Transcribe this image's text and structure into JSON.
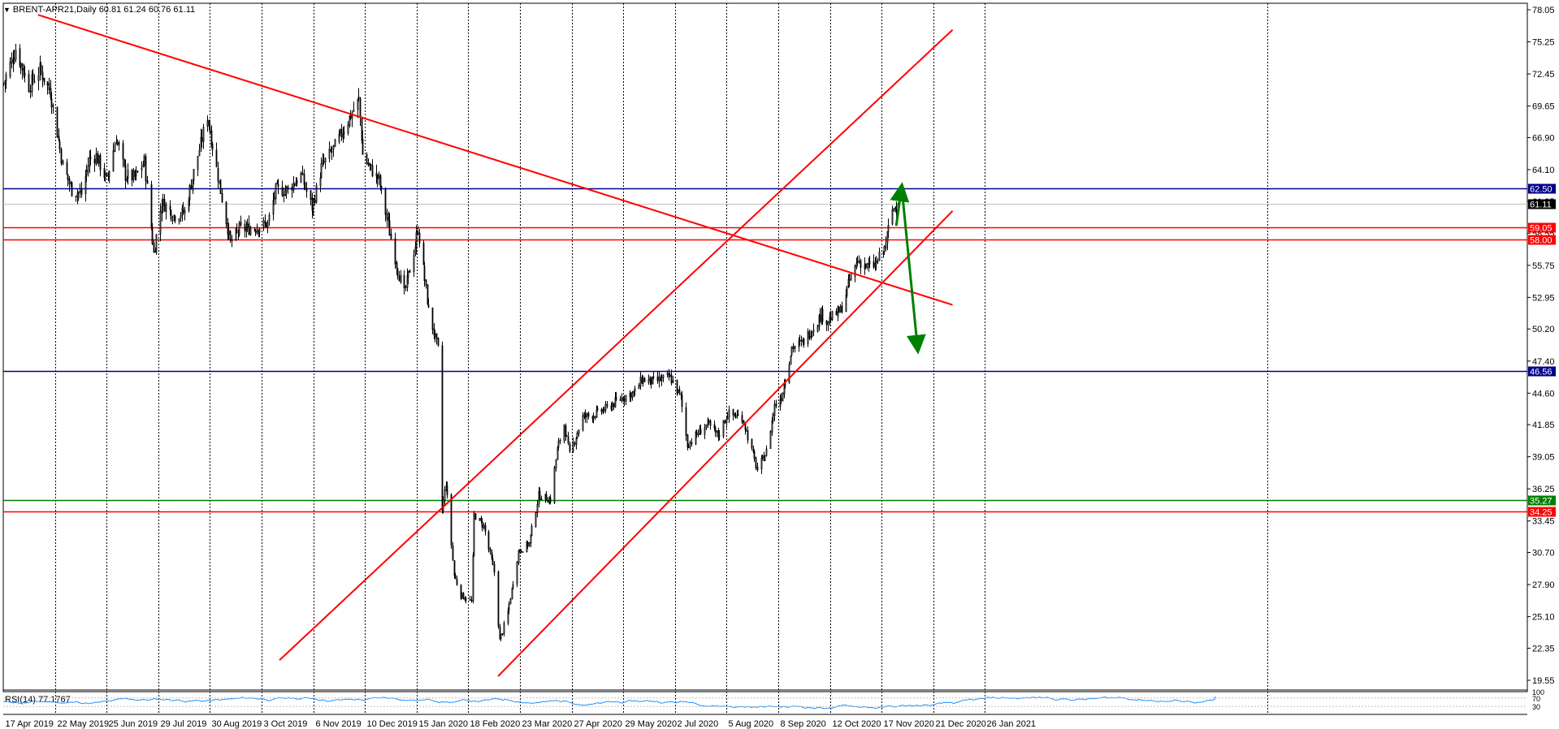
{
  "header": {
    "symbol": "BRENT-APR21,Daily",
    "ohlc": "60.81 61.24 60.76 61.11"
  },
  "rsi": {
    "label": "RSI(14) 77.1767",
    "scale_labels": [
      "100",
      "70",
      "30"
    ],
    "value": 77.1767
  },
  "chart_data": {
    "type": "candlestick",
    "title": "",
    "symbol": "BRENT-APR21",
    "timeframe": "Daily",
    "price_axis": {
      "ticks": [
        "78.05",
        "75.25",
        "72.45",
        "69.65",
        "66.90",
        "64.10",
        "61.35",
        "58.55",
        "55.75",
        "52.95",
        "50.20",
        "47.40",
        "44.60",
        "41.85",
        "39.05",
        "36.25",
        "33.45",
        "30.70",
        "27.90",
        "25.10",
        "22.35",
        "19.55"
      ],
      "ylim": [
        19.55,
        78.05
      ]
    },
    "time_axis": {
      "ticks": [
        "17 Apr 2019",
        "22 May 2019",
        "25 Jun 2019",
        "29 Jul 2019",
        "30 Aug 2019",
        "3 Oct 2019",
        "6 Nov 2019",
        "10 Dec 2019",
        "15 Jan 2020",
        "18 Feb 2020",
        "23 Mar 2020",
        "27 Apr 2020",
        "29 May 2020",
        "2 Jul 2020",
        "5 Aug 2020",
        "8 Sep 2020",
        "12 Oct 2020",
        "17 Nov 2020",
        "21 Dec 2020",
        "26 Jan 2021"
      ],
      "range": [
        "2019-04-17",
        "2021-02-26"
      ]
    },
    "price_series": [
      {
        "date": "2019-04-17",
        "close": 71.6
      },
      {
        "date": "2019-04-26",
        "close": 74.6
      },
      {
        "date": "2019-05-06",
        "close": 71.4
      },
      {
        "date": "2019-05-14",
        "close": 72.8
      },
      {
        "date": "2019-05-22",
        "close": 70.9
      },
      {
        "date": "2019-05-31",
        "close": 64.5
      },
      {
        "date": "2019-06-07",
        "close": 62.3
      },
      {
        "date": "2019-06-14",
        "close": 62.0
      },
      {
        "date": "2019-06-20",
        "close": 65.0
      },
      {
        "date": "2019-06-25",
        "close": 65.3
      },
      {
        "date": "2019-07-03",
        "close": 63.1
      },
      {
        "date": "2019-07-10",
        "close": 66.9
      },
      {
        "date": "2019-07-17",
        "close": 63.6
      },
      {
        "date": "2019-07-24",
        "close": 63.4
      },
      {
        "date": "2019-07-31",
        "close": 64.8
      },
      {
        "date": "2019-08-07",
        "close": 56.8
      },
      {
        "date": "2019-08-13",
        "close": 61.3
      },
      {
        "date": "2019-08-22",
        "close": 60.1
      },
      {
        "date": "2019-08-30",
        "close": 60.4
      },
      {
        "date": "2019-09-16",
        "close": 68.8
      },
      {
        "date": "2019-09-23",
        "close": 64.2
      },
      {
        "date": "2019-10-03",
        "close": 57.7
      },
      {
        "date": "2019-10-10",
        "close": 58.9
      },
      {
        "date": "2019-10-21",
        "close": 59.0
      },
      {
        "date": "2019-10-31",
        "close": 59.4
      },
      {
        "date": "2019-11-06",
        "close": 62.3
      },
      {
        "date": "2019-11-14",
        "close": 62.3
      },
      {
        "date": "2019-11-25",
        "close": 63.6
      },
      {
        "date": "2019-12-03",
        "close": 60.8
      },
      {
        "date": "2019-12-10",
        "close": 64.3
      },
      {
        "date": "2019-12-20",
        "close": 66.1
      },
      {
        "date": "2019-12-30",
        "close": 68.4
      },
      {
        "date": "2020-01-07",
        "close": 70.2
      },
      {
        "date": "2020-01-10",
        "close": 65.4
      },
      {
        "date": "2020-01-15",
        "close": 64.3
      },
      {
        "date": "2020-01-22",
        "close": 63.2
      },
      {
        "date": "2020-01-31",
        "close": 58.1
      },
      {
        "date": "2020-02-05",
        "close": 55.3
      },
      {
        "date": "2020-02-10",
        "close": 53.3
      },
      {
        "date": "2020-02-18",
        "close": 57.5
      },
      {
        "date": "2020-02-20",
        "close": 59.0
      },
      {
        "date": "2020-02-28",
        "close": 51.8
      },
      {
        "date": "2020-03-06",
        "close": 48.4
      },
      {
        "date": "2020-03-09",
        "close": 34.4
      },
      {
        "date": "2020-03-12",
        "close": 36.8
      },
      {
        "date": "2020-03-18",
        "close": 28.7
      },
      {
        "date": "2020-03-23",
        "close": 27.0
      },
      {
        "date": "2020-03-31",
        "close": 26.4
      },
      {
        "date": "2020-04-02",
        "close": 34.0
      },
      {
        "date": "2020-04-09",
        "close": 33.0
      },
      {
        "date": "2020-04-17",
        "close": 29.0
      },
      {
        "date": "2020-04-21",
        "close": 23.0
      },
      {
        "date": "2020-04-27",
        "close": 25.5
      },
      {
        "date": "2020-05-05",
        "close": 30.8
      },
      {
        "date": "2020-05-13",
        "close": 31.5
      },
      {
        "date": "2020-05-20",
        "close": 35.7
      },
      {
        "date": "2020-05-29",
        "close": 35.3
      },
      {
        "date": "2020-06-03",
        "close": 39.7
      },
      {
        "date": "2020-06-08",
        "close": 41.9
      },
      {
        "date": "2020-06-12",
        "close": 39.2
      },
      {
        "date": "2020-06-22",
        "close": 42.5
      },
      {
        "date": "2020-07-02",
        "close": 42.8
      },
      {
        "date": "2020-07-10",
        "close": 43.3
      },
      {
        "date": "2020-07-21",
        "close": 44.2
      },
      {
        "date": "2020-07-31",
        "close": 44.7
      },
      {
        "date": "2020-08-05",
        "close": 45.8
      },
      {
        "date": "2020-08-14",
        "close": 45.6
      },
      {
        "date": "2020-08-26",
        "close": 46.0
      },
      {
        "date": "2020-09-03",
        "close": 44.2
      },
      {
        "date": "2020-09-08",
        "close": 40.1
      },
      {
        "date": "2020-09-15",
        "close": 41.0
      },
      {
        "date": "2020-09-23",
        "close": 41.9
      },
      {
        "date": "2020-10-01",
        "close": 40.9
      },
      {
        "date": "2020-10-08",
        "close": 42.8
      },
      {
        "date": "2020-10-19",
        "close": 42.5
      },
      {
        "date": "2020-10-30",
        "close": 37.9
      },
      {
        "date": "2020-11-06",
        "close": 39.5
      },
      {
        "date": "2020-11-12",
        "close": 43.5
      },
      {
        "date": "2020-11-17",
        "close": 44.3
      },
      {
        "date": "2020-11-25",
        "close": 48.6
      },
      {
        "date": "2020-12-03",
        "close": 49.0
      },
      {
        "date": "2020-12-10",
        "close": 50.2
      },
      {
        "date": "2020-12-17",
        "close": 51.5
      },
      {
        "date": "2020-12-21",
        "close": 50.9
      },
      {
        "date": "2020-12-31",
        "close": 51.8
      },
      {
        "date": "2021-01-07",
        "close": 54.4
      },
      {
        "date": "2021-01-13",
        "close": 56.2
      },
      {
        "date": "2021-01-20",
        "close": 55.6
      },
      {
        "date": "2021-01-26",
        "close": 55.8
      },
      {
        "date": "2021-02-02",
        "close": 57.2
      },
      {
        "date": "2021-02-08",
        "close": 60.6
      },
      {
        "date": "2021-02-12",
        "close": 61.11
      }
    ],
    "levels": [
      {
        "price": 62.5,
        "label": "62.50",
        "color": "#00008b"
      },
      {
        "price": 59.05,
        "label": "59.05",
        "color": "#ff0000"
      },
      {
        "price": 58.0,
        "label": "58.00",
        "color": "#ff0000"
      },
      {
        "price": 46.56,
        "label": "46.56",
        "color": "#00008b"
      },
      {
        "price": 35.27,
        "label": "35.27",
        "color": "#008000"
      },
      {
        "price": 34.25,
        "label": "34.25",
        "color": "#ff0000"
      }
    ],
    "current_price": {
      "price": 61.11,
      "label": "61.11",
      "color": "#000000"
    },
    "trendlines": [
      {
        "name": "descending-trendline",
        "from": {
          "date": "2019-05-13",
          "price": 77.6
        },
        "to": {
          "date": "2021-03-25",
          "price": 52.3
        },
        "color": "#ff0000"
      },
      {
        "name": "channel-upper-line",
        "from": {
          "date": "2019-11-09",
          "price": 21.3
        },
        "to": {
          "date": "2021-03-25",
          "price": 76.3
        },
        "color": "#ff0000"
      },
      {
        "name": "channel-lower-line",
        "from": {
          "date": "2020-04-20",
          "price": 19.9
        },
        "to": {
          "date": "2021-03-25",
          "price": 60.5
        },
        "color": "#ff0000"
      }
    ],
    "arrows": [
      {
        "name": "arrow-up",
        "from": {
          "date": "2021-02-11",
          "price": 59.2
        },
        "to": {
          "date": "2021-02-15",
          "price": 62.6
        },
        "color": "#008000"
      },
      {
        "name": "arrow-down",
        "from": {
          "date": "2021-02-15",
          "price": 62.6
        },
        "to": {
          "date": "2021-02-27",
          "price": 48.4
        },
        "color": "#008000"
      }
    ],
    "colors": {
      "candle": "#000000",
      "grid": "#000000",
      "rsi_line": "#1e90ff"
    },
    "grid": "vertical-dotted"
  }
}
